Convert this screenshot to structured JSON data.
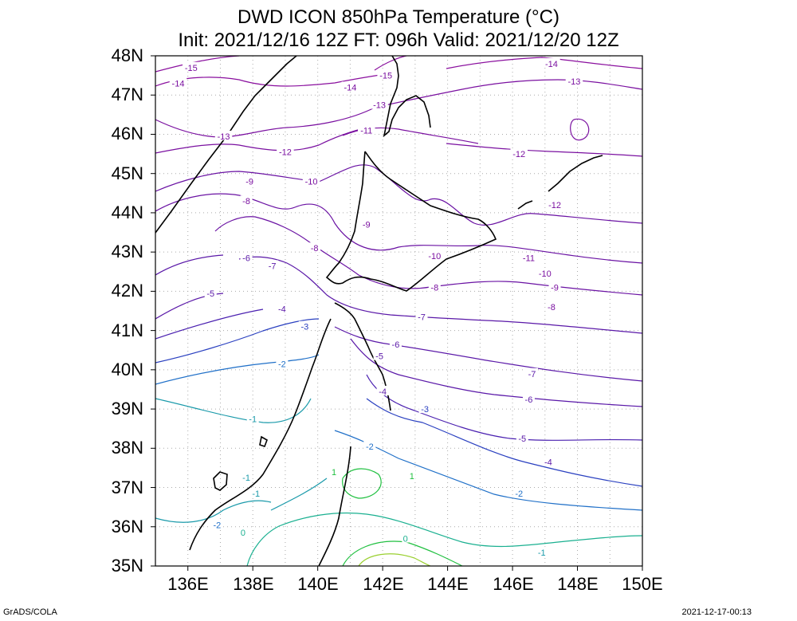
{
  "title": {
    "line1": "DWD ICON 850hPa Temperature (°C)",
    "line2": "Init: 2021/12/16 12Z  FT: 096h  Valid: 2021/12/20 12Z"
  },
  "axes": {
    "lat_labels": [
      "48N",
      "47N",
      "46N",
      "45N",
      "44N",
      "43N",
      "42N",
      "41N",
      "40N",
      "39N",
      "38N",
      "37N",
      "36N",
      "35N"
    ],
    "lon_labels": [
      "136E",
      "138E",
      "140E",
      "142E",
      "144E",
      "146E",
      "148E",
      "150E"
    ],
    "lat_range": [
      35,
      48
    ],
    "lon_range": [
      135,
      150
    ],
    "grid": "dotted"
  },
  "footer": {
    "left": "GrADS/COLA",
    "right": "2021-12-17-00:13"
  },
  "contour_labels": [
    {
      "text": "-15",
      "lon": 136.1,
      "lat": 47.7
    },
    {
      "text": "-14",
      "lon": 135.7,
      "lat": 47.3
    },
    {
      "text": "-15",
      "lon": 142.1,
      "lat": 47.5
    },
    {
      "text": "-14",
      "lon": 141.0,
      "lat": 47.2
    },
    {
      "text": "-14",
      "lon": 147.2,
      "lat": 47.8
    },
    {
      "text": "-13",
      "lon": 147.9,
      "lat": 47.35
    },
    {
      "text": "-13",
      "lon": 141.9,
      "lat": 46.75
    },
    {
      "text": "-13",
      "lon": 137.1,
      "lat": 45.95
    },
    {
      "text": "-12",
      "lon": 139.0,
      "lat": 45.55
    },
    {
      "text": "-11",
      "lon": 141.5,
      "lat": 46.1
    },
    {
      "text": "-12",
      "lon": 146.2,
      "lat": 45.5
    },
    {
      "text": "-10",
      "lon": 139.8,
      "lat": 44.8
    },
    {
      "text": "-9",
      "lon": 137.9,
      "lat": 44.8
    },
    {
      "text": "-8",
      "lon": 137.8,
      "lat": 44.3
    },
    {
      "text": "-12",
      "lon": 147.3,
      "lat": 44.2
    },
    {
      "text": "-9",
      "lon": 141.5,
      "lat": 43.7
    },
    {
      "text": "-8",
      "lon": 139.9,
      "lat": 43.1
    },
    {
      "text": "-10",
      "lon": 143.6,
      "lat": 42.9
    },
    {
      "text": "-11",
      "lon": 146.5,
      "lat": 42.85
    },
    {
      "text": "-10",
      "lon": 147.0,
      "lat": 42.45
    },
    {
      "text": "-6",
      "lon": 137.8,
      "lat": 42.85
    },
    {
      "text": "-7",
      "lon": 138.6,
      "lat": 42.65
    },
    {
      "text": "-9",
      "lon": 147.3,
      "lat": 42.1
    },
    {
      "text": "-8",
      "lon": 143.6,
      "lat": 42.1
    },
    {
      "text": "-5",
      "lon": 136.7,
      "lat": 41.95
    },
    {
      "text": "-4",
      "lon": 138.9,
      "lat": 41.55
    },
    {
      "text": "-8",
      "lon": 147.2,
      "lat": 41.6
    },
    {
      "text": "-7",
      "lon": 143.2,
      "lat": 41.35
    },
    {
      "text": "-3",
      "lon": 139.6,
      "lat": 41.1
    },
    {
      "text": "-6",
      "lon": 142.4,
      "lat": 40.65
    },
    {
      "text": "-5",
      "lon": 141.9,
      "lat": 40.35
    },
    {
      "text": "-2",
      "lon": 138.9,
      "lat": 40.15
    },
    {
      "text": "-7",
      "lon": 146.6,
      "lat": 39.9
    },
    {
      "text": "-4",
      "lon": 142.0,
      "lat": 39.45
    },
    {
      "text": "-6",
      "lon": 146.5,
      "lat": 39.25
    },
    {
      "text": "-3",
      "lon": 143.3,
      "lat": 39.0
    },
    {
      "text": "-1",
      "lon": 138.0,
      "lat": 38.75
    },
    {
      "text": "-5",
      "lon": 146.3,
      "lat": 38.25
    },
    {
      "text": "-2",
      "lon": 141.6,
      "lat": 38.05
    },
    {
      "text": "-4",
      "lon": 147.1,
      "lat": 37.65
    },
    {
      "text": "1",
      "lon": 140.5,
      "lat": 37.4
    },
    {
      "text": "1",
      "lon": 142.9,
      "lat": 37.3
    },
    {
      "text": "-1",
      "lon": 137.8,
      "lat": 37.25
    },
    {
      "text": "-1",
      "lon": 138.1,
      "lat": 36.85
    },
    {
      "text": "-2",
      "lon": 146.2,
      "lat": 36.85
    },
    {
      "text": "-2",
      "lon": 136.9,
      "lat": 36.05
    },
    {
      "text": "0",
      "lon": 137.7,
      "lat": 35.85
    },
    {
      "text": "0",
      "lon": 142.7,
      "lat": 35.7
    },
    {
      "text": "-1",
      "lon": 146.9,
      "lat": 35.35
    }
  ]
}
